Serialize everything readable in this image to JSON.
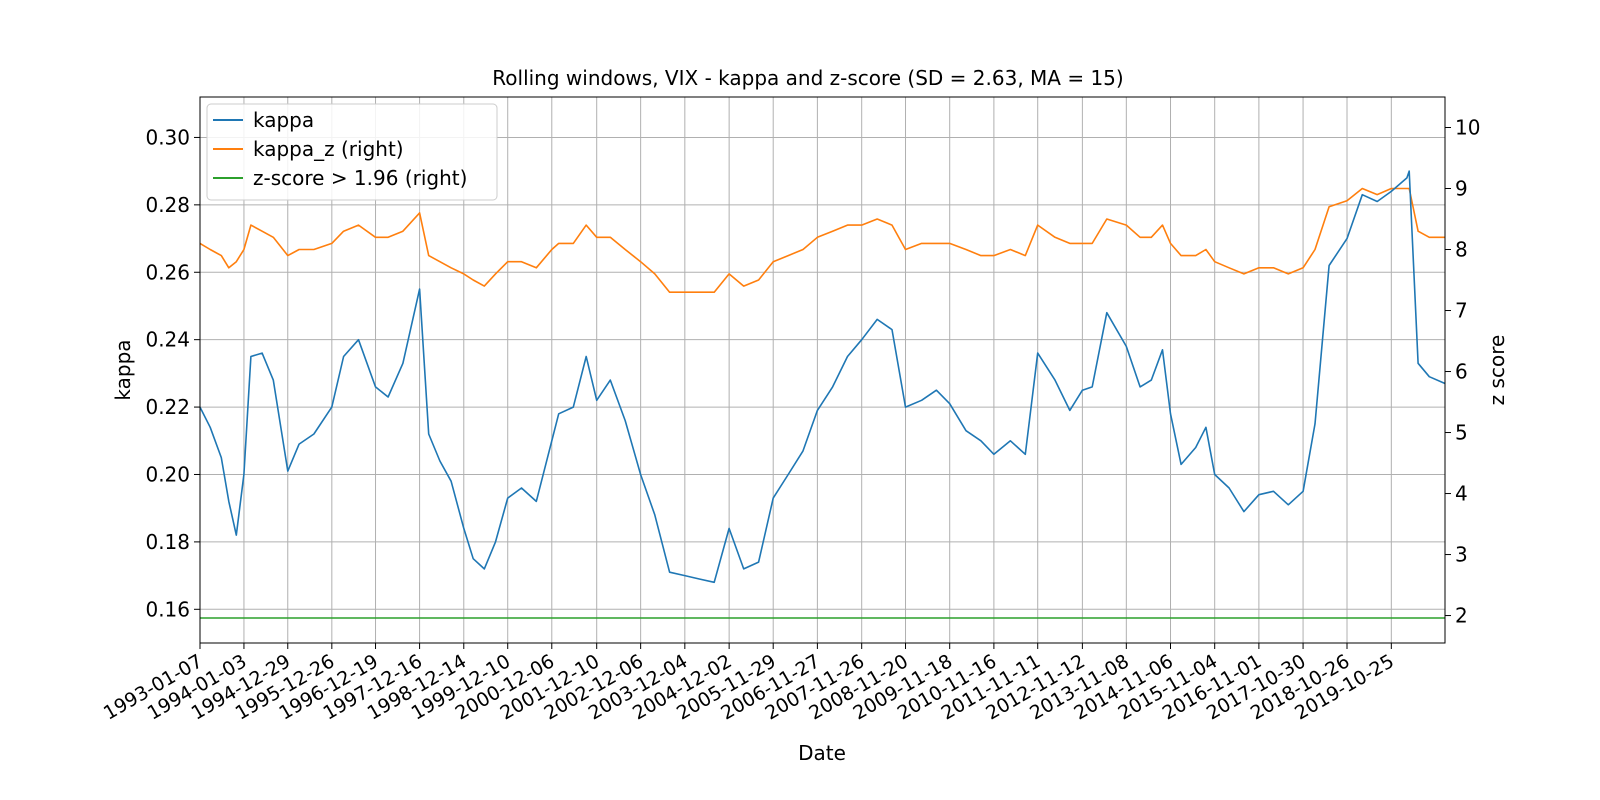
{
  "chart_data": {
    "type": "line",
    "title": "Rolling windows, VIX - kappa and z-score (SD = 2.63, MA = 15)",
    "xlabel": "Date",
    "ylabel": "kappa",
    "ylabel_right": "z score",
    "ylim": [
      0.15,
      0.312
    ],
    "ylim_right": [
      1.55,
      10.5
    ],
    "xlim": [
      "1993-01-07",
      "2021-01-08"
    ],
    "grid": true,
    "legend_position": "upper left",
    "x_ticks": [
      "1993-01-07",
      "1994-01-03",
      "1994-12-29",
      "1995-12-26",
      "1996-12-19",
      "1997-12-16",
      "1998-12-14",
      "1999-12-10",
      "2000-12-06",
      "2001-12-10",
      "2002-12-06",
      "2003-12-04",
      "2004-12-02",
      "2005-11-29",
      "2006-11-27",
      "2007-11-26",
      "2008-11-20",
      "2009-11-18",
      "2010-11-16",
      "2011-11-11",
      "2012-11-12",
      "2013-11-08",
      "2014-11-06",
      "2015-11-04",
      "2016-11-01",
      "2017-10-30",
      "2018-10-26",
      "2019-10-25"
    ],
    "y_ticks_left": [
      "0.16",
      "0.18",
      "0.20",
      "0.22",
      "0.24",
      "0.26",
      "0.28",
      "0.30"
    ],
    "y_ticks_right": [
      "2",
      "3",
      "4",
      "5",
      "6",
      "7",
      "8",
      "9",
      "10"
    ],
    "series": [
      {
        "name": "kappa",
        "color": "#1f77b4",
        "axis": "left",
        "x": [
          "1993-01-07",
          "1993-04-01",
          "1993-07-01",
          "1993-09-01",
          "1993-11-01",
          "1994-01-03",
          "1994-03-01",
          "1994-06-01",
          "1994-09-01",
          "1994-12-29",
          "1995-04-01",
          "1995-08-01",
          "1995-12-26",
          "1996-04-01",
          "1996-08-01",
          "1996-12-19",
          "1997-04-01",
          "1997-08-01",
          "1997-12-16",
          "1998-03-01",
          "1998-06-01",
          "1998-09-01",
          "1998-12-14",
          "1999-03-01",
          "1999-06-01",
          "1999-09-01",
          "1999-12-10",
          "2000-04-01",
          "2000-08-01",
          "2000-12-06",
          "2001-02-01",
          "2001-06-01",
          "2001-09-15",
          "2001-12-10",
          "2002-04-01",
          "2002-08-01",
          "2002-12-06",
          "2003-04-01",
          "2003-08-01",
          "2003-12-04",
          "2004-04-01",
          "2004-08-01",
          "2004-12-02",
          "2005-04-01",
          "2005-08-01",
          "2005-11-29",
          "2006-04-01",
          "2006-08-01",
          "2006-11-27",
          "2007-04-01",
          "2007-08-01",
          "2007-11-26",
          "2008-04-01",
          "2008-08-01",
          "2008-11-20",
          "2009-04-01",
          "2009-08-01",
          "2009-11-18",
          "2010-04-01",
          "2010-08-01",
          "2010-11-16",
          "2011-04-01",
          "2011-08-01",
          "2011-11-11",
          "2012-04-01",
          "2012-08-01",
          "2012-11-12",
          "2013-02-01",
          "2013-06-01",
          "2013-11-08",
          "2014-03-01",
          "2014-06-01",
          "2014-09-01",
          "2014-11-06",
          "2015-02-01",
          "2015-06-01",
          "2015-08-24",
          "2015-11-04",
          "2016-03-01",
          "2016-07-01",
          "2016-11-01",
          "2017-03-01",
          "2017-07-01",
          "2017-10-30",
          "2018-02-05",
          "2018-06-01",
          "2018-10-26",
          "2019-03-01",
          "2019-07-01",
          "2019-10-25",
          "2020-03-01",
          "2020-03-20",
          "2020-06-01",
          "2020-09-01",
          "2021-01-08"
        ],
        "values": [
          0.22,
          0.214,
          0.205,
          0.192,
          0.182,
          0.2,
          0.235,
          0.236,
          0.228,
          0.201,
          0.209,
          0.212,
          0.22,
          0.235,
          0.24,
          0.226,
          0.223,
          0.233,
          0.255,
          0.212,
          0.204,
          0.198,
          0.184,
          0.175,
          0.172,
          0.18,
          0.193,
          0.196,
          0.192,
          0.21,
          0.218,
          0.22,
          0.235,
          0.222,
          0.228,
          0.216,
          0.2,
          0.188,
          0.171,
          0.17,
          0.169,
          0.168,
          0.184,
          0.172,
          0.174,
          0.193,
          0.2,
          0.207,
          0.219,
          0.226,
          0.235,
          0.24,
          0.246,
          0.243,
          0.22,
          0.222,
          0.225,
          0.221,
          0.213,
          0.21,
          0.206,
          0.21,
          0.206,
          0.236,
          0.228,
          0.219,
          0.225,
          0.226,
          0.248,
          0.238,
          0.226,
          0.228,
          0.237,
          0.218,
          0.203,
          0.208,
          0.214,
          0.2,
          0.196,
          0.189,
          0.194,
          0.195,
          0.191,
          0.195,
          0.215,
          0.262,
          0.27,
          0.283,
          0.281,
          0.284,
          0.288,
          0.29,
          0.233,
          0.229,
          0.227
        ]
      },
      {
        "name": "kappa_z (right)",
        "color": "#ff7f0e",
        "axis": "right",
        "x": [
          "1993-01-07",
          "1993-04-01",
          "1993-07-01",
          "1993-09-01",
          "1993-11-01",
          "1994-01-03",
          "1994-03-01",
          "1994-06-01",
          "1994-09-01",
          "1994-12-29",
          "1995-04-01",
          "1995-08-01",
          "1995-12-26",
          "1996-04-01",
          "1996-08-01",
          "1996-12-19",
          "1997-04-01",
          "1997-08-01",
          "1997-12-16",
          "1998-03-01",
          "1998-06-01",
          "1998-09-01",
          "1998-12-14",
          "1999-03-01",
          "1999-06-01",
          "1999-09-01",
          "1999-12-10",
          "2000-04-01",
          "2000-08-01",
          "2000-12-06",
          "2001-02-01",
          "2001-06-01",
          "2001-09-15",
          "2001-12-10",
          "2002-04-01",
          "2002-08-01",
          "2002-12-06",
          "2003-04-01",
          "2003-08-01",
          "2003-12-04",
          "2004-04-01",
          "2004-08-01",
          "2004-12-02",
          "2005-04-01",
          "2005-08-01",
          "2005-11-29",
          "2006-04-01",
          "2006-08-01",
          "2006-11-27",
          "2007-04-01",
          "2007-08-01",
          "2007-11-26",
          "2008-04-01",
          "2008-08-01",
          "2008-11-20",
          "2009-04-01",
          "2009-08-01",
          "2009-11-18",
          "2010-04-01",
          "2010-08-01",
          "2010-11-16",
          "2011-04-01",
          "2011-08-01",
          "2011-11-11",
          "2012-04-01",
          "2012-08-01",
          "2012-11-12",
          "2013-02-01",
          "2013-06-01",
          "2013-11-08",
          "2014-03-01",
          "2014-06-01",
          "2014-09-01",
          "2014-11-06",
          "2015-02-01",
          "2015-06-01",
          "2015-08-24",
          "2015-11-04",
          "2016-03-01",
          "2016-07-01",
          "2016-11-01",
          "2017-03-01",
          "2017-07-01",
          "2017-10-30",
          "2018-02-05",
          "2018-06-01",
          "2018-10-26",
          "2019-03-01",
          "2019-07-01",
          "2019-10-25",
          "2020-03-01",
          "2020-03-20",
          "2020-06-01",
          "2020-09-01",
          "2021-01-08"
        ],
        "values": [
          8.1,
          8.0,
          7.9,
          7.7,
          7.8,
          8.0,
          8.4,
          8.3,
          8.2,
          7.9,
          8.0,
          8.0,
          8.1,
          8.3,
          8.4,
          8.2,
          8.2,
          8.3,
          8.6,
          7.9,
          7.8,
          7.7,
          7.6,
          7.5,
          7.4,
          7.6,
          7.8,
          7.8,
          7.7,
          8.0,
          8.1,
          8.1,
          8.4,
          8.2,
          8.2,
          8.0,
          7.8,
          7.6,
          7.3,
          7.3,
          7.3,
          7.3,
          7.6,
          7.4,
          7.5,
          7.8,
          7.9,
          8.0,
          8.2,
          8.3,
          8.4,
          8.4,
          8.5,
          8.4,
          8.0,
          8.1,
          8.1,
          8.1,
          8.0,
          7.9,
          7.9,
          8.0,
          7.9,
          8.4,
          8.2,
          8.1,
          8.1,
          8.1,
          8.5,
          8.4,
          8.2,
          8.2,
          8.4,
          8.1,
          7.9,
          7.9,
          8.0,
          7.8,
          7.7,
          7.6,
          7.7,
          7.7,
          7.6,
          7.7,
          8.0,
          8.7,
          8.8,
          9.0,
          8.9,
          9.0,
          9.0,
          9.0,
          8.3,
          8.2,
          8.2
        ]
      },
      {
        "name": "z-score > 1.96 (right)",
        "color": "#2ca02c",
        "axis": "right",
        "x": [
          "1993-01-07",
          "2021-01-08"
        ],
        "values": [
          1.96,
          1.96
        ]
      }
    ]
  }
}
